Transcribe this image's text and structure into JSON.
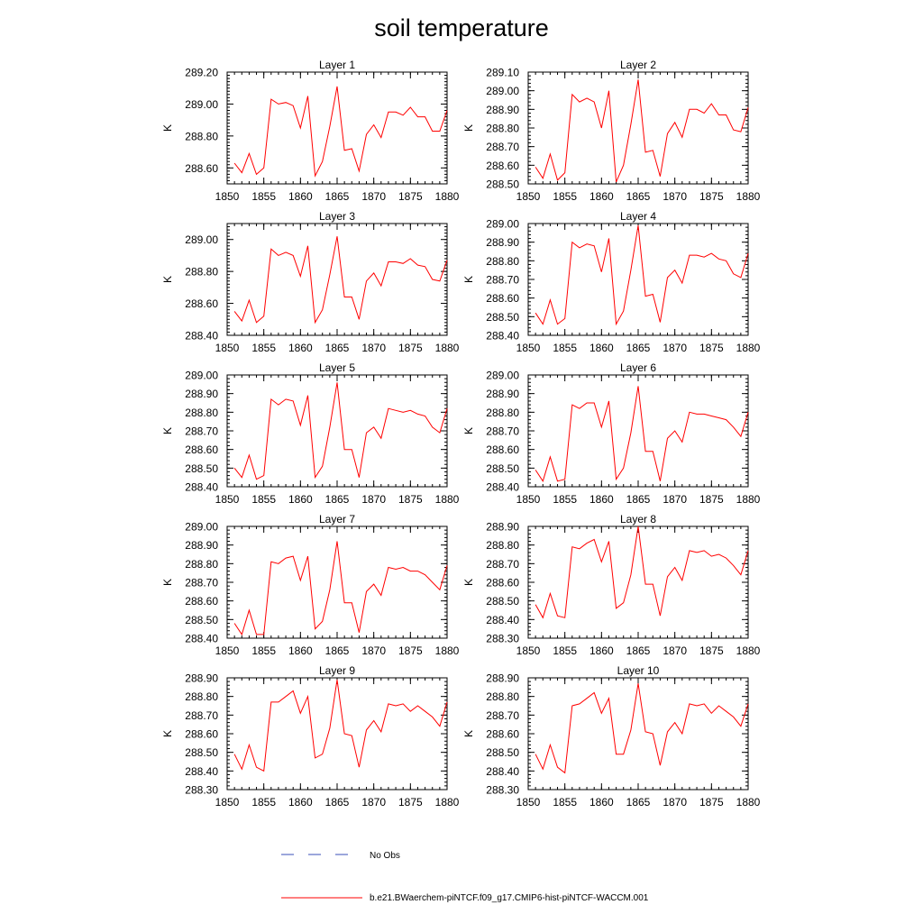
{
  "title": "soil temperature",
  "colors": {
    "model": "#ff0000",
    "obs": "#3a4fb8",
    "axis": "#000000"
  },
  "legend": {
    "obs_label": "No Obs",
    "model_label": "b.e21.BWaerchem-piNTCF.f09_g17.CMIP6-hist-piNTCF-WACCM.001"
  },
  "chart_data": [
    {
      "type": "line",
      "title": "Layer 1",
      "ylabel": "K",
      "xlim": [
        1850,
        1880
      ],
      "ylim": [
        288.5,
        289.2
      ],
      "yticks": [
        288.6,
        288.8,
        289.0,
        289.2
      ],
      "xticks": [
        1850,
        1855,
        1860,
        1865,
        1870,
        1875,
        1880
      ],
      "x": [
        1851,
        1852,
        1853,
        1854,
        1855,
        1856,
        1857,
        1858,
        1859,
        1860,
        1861,
        1862,
        1863,
        1864,
        1865,
        1866,
        1867,
        1868,
        1869,
        1870,
        1871,
        1872,
        1873,
        1874,
        1875,
        1876,
        1877,
        1878,
        1879,
        1880
      ],
      "series": [
        {
          "name": "b.e21.BWaerchem-piNTCF.f09_g17.CMIP6-hist-piNTCF-WACCM.001",
          "values": [
            288.63,
            288.57,
            288.69,
            288.56,
            288.6,
            289.03,
            289.0,
            289.01,
            288.99,
            288.85,
            289.05,
            288.55,
            288.64,
            288.86,
            289.11,
            288.71,
            288.72,
            288.58,
            288.81,
            288.87,
            288.79,
            288.95,
            288.95,
            288.93,
            288.98,
            288.92,
            288.92,
            288.83,
            288.83,
            288.96
          ]
        }
      ]
    },
    {
      "type": "line",
      "title": "Layer 2",
      "ylabel": "K",
      "xlim": [
        1850,
        1880
      ],
      "ylim": [
        288.5,
        289.1
      ],
      "yticks": [
        288.5,
        288.6,
        288.7,
        288.8,
        288.9,
        289.0,
        289.1
      ],
      "xticks": [
        1850,
        1855,
        1860,
        1865,
        1870,
        1875,
        1880
      ],
      "x": [
        1851,
        1852,
        1853,
        1854,
        1855,
        1856,
        1857,
        1858,
        1859,
        1860,
        1861,
        1862,
        1863,
        1864,
        1865,
        1866,
        1867,
        1868,
        1869,
        1870,
        1871,
        1872,
        1873,
        1874,
        1875,
        1876,
        1877,
        1878,
        1879,
        1880
      ],
      "series": [
        {
          "name": "b.e21.BWaerchem-piNTCF.f09_g17.CMIP6-hist-piNTCF-WACCM.001",
          "values": [
            288.59,
            288.53,
            288.66,
            288.52,
            288.56,
            288.98,
            288.94,
            288.96,
            288.94,
            288.8,
            289.0,
            288.51,
            288.6,
            288.82,
            289.06,
            288.67,
            288.68,
            288.54,
            288.77,
            288.83,
            288.75,
            288.9,
            288.9,
            288.88,
            288.93,
            288.87,
            288.87,
            288.79,
            288.78,
            288.91
          ]
        }
      ]
    },
    {
      "type": "line",
      "title": "Layer 3",
      "ylabel": "K",
      "xlim": [
        1850,
        1880
      ],
      "ylim": [
        288.4,
        289.1
      ],
      "yticks": [
        288.4,
        288.6,
        288.8,
        289.0
      ],
      "xticks": [
        1850,
        1855,
        1860,
        1865,
        1870,
        1875,
        1880
      ],
      "x": [
        1851,
        1852,
        1853,
        1854,
        1855,
        1856,
        1857,
        1858,
        1859,
        1860,
        1861,
        1862,
        1863,
        1864,
        1865,
        1866,
        1867,
        1868,
        1869,
        1870,
        1871,
        1872,
        1873,
        1874,
        1875,
        1876,
        1877,
        1878,
        1879,
        1880
      ],
      "series": [
        {
          "name": "b.e21.BWaerchem-piNTCF.f09_g17.CMIP6-hist-piNTCF-WACCM.001",
          "values": [
            288.55,
            288.49,
            288.62,
            288.48,
            288.52,
            288.94,
            288.9,
            288.92,
            288.9,
            288.77,
            288.96,
            288.48,
            288.56,
            288.78,
            289.02,
            288.64,
            288.64,
            288.5,
            288.74,
            288.79,
            288.71,
            288.86,
            288.86,
            288.85,
            288.88,
            288.84,
            288.83,
            288.75,
            288.74,
            288.87
          ]
        }
      ]
    },
    {
      "type": "line",
      "title": "Layer 4",
      "ylabel": "K",
      "xlim": [
        1850,
        1880
      ],
      "ylim": [
        288.4,
        289.0
      ],
      "yticks": [
        288.4,
        288.5,
        288.6,
        288.7,
        288.8,
        288.9,
        289.0
      ],
      "xticks": [
        1850,
        1855,
        1860,
        1865,
        1870,
        1875,
        1880
      ],
      "x": [
        1851,
        1852,
        1853,
        1854,
        1855,
        1856,
        1857,
        1858,
        1859,
        1860,
        1861,
        1862,
        1863,
        1864,
        1865,
        1866,
        1867,
        1868,
        1869,
        1870,
        1871,
        1872,
        1873,
        1874,
        1875,
        1876,
        1877,
        1878,
        1879,
        1880
      ],
      "series": [
        {
          "name": "b.e21.BWaerchem-piNTCF.f09_g17.CMIP6-hist-piNTCF-WACCM.001",
          "values": [
            288.52,
            288.46,
            288.59,
            288.46,
            288.49,
            288.9,
            288.87,
            288.89,
            288.88,
            288.74,
            288.92,
            288.46,
            288.53,
            288.75,
            288.99,
            288.61,
            288.62,
            288.47,
            288.71,
            288.75,
            288.68,
            288.83,
            288.83,
            288.82,
            288.84,
            288.81,
            288.8,
            288.73,
            288.71,
            288.84
          ]
        }
      ]
    },
    {
      "type": "line",
      "title": "Layer 5",
      "ylabel": "K",
      "xlim": [
        1850,
        1880
      ],
      "ylim": [
        288.4,
        289.0
      ],
      "yticks": [
        288.4,
        288.5,
        288.6,
        288.7,
        288.8,
        288.9,
        289.0
      ],
      "xticks": [
        1850,
        1855,
        1860,
        1865,
        1870,
        1875,
        1880
      ],
      "x": [
        1851,
        1852,
        1853,
        1854,
        1855,
        1856,
        1857,
        1858,
        1859,
        1860,
        1861,
        1862,
        1863,
        1864,
        1865,
        1866,
        1867,
        1868,
        1869,
        1870,
        1871,
        1872,
        1873,
        1874,
        1875,
        1876,
        1877,
        1878,
        1879,
        1880
      ],
      "series": [
        {
          "name": "b.e21.BWaerchem-piNTCF.f09_g17.CMIP6-hist-piNTCF-WACCM.001",
          "values": [
            288.5,
            288.45,
            288.57,
            288.44,
            288.46,
            288.87,
            288.84,
            288.87,
            288.86,
            288.73,
            288.89,
            288.45,
            288.51,
            288.72,
            288.96,
            288.6,
            288.6,
            288.45,
            288.69,
            288.72,
            288.66,
            288.82,
            288.81,
            288.8,
            288.81,
            288.79,
            288.78,
            288.72,
            288.69,
            288.82
          ]
        }
      ]
    },
    {
      "type": "line",
      "title": "Layer 6",
      "ylabel": "K",
      "xlim": [
        1850,
        1880
      ],
      "ylim": [
        288.4,
        289.0
      ],
      "yticks": [
        288.4,
        288.5,
        288.6,
        288.7,
        288.8,
        288.9,
        289.0
      ],
      "xticks": [
        1850,
        1855,
        1860,
        1865,
        1870,
        1875,
        1880
      ],
      "x": [
        1851,
        1852,
        1853,
        1854,
        1855,
        1856,
        1857,
        1858,
        1859,
        1860,
        1861,
        1862,
        1863,
        1864,
        1865,
        1866,
        1867,
        1868,
        1869,
        1870,
        1871,
        1872,
        1873,
        1874,
        1875,
        1876,
        1877,
        1878,
        1879,
        1880
      ],
      "series": [
        {
          "name": "b.e21.BWaerchem-piNTCF.f09_g17.CMIP6-hist-piNTCF-WACCM.001",
          "values": [
            288.49,
            288.43,
            288.56,
            288.43,
            288.44,
            288.84,
            288.82,
            288.85,
            288.85,
            288.72,
            288.86,
            288.44,
            288.5,
            288.69,
            288.94,
            288.59,
            288.59,
            288.43,
            288.66,
            288.7,
            288.64,
            288.8,
            288.79,
            288.79,
            288.78,
            288.77,
            288.76,
            288.72,
            288.67,
            288.8
          ]
        }
      ]
    },
    {
      "type": "line",
      "title": "Layer 7",
      "ylabel": "K",
      "xlim": [
        1850,
        1880
      ],
      "ylim": [
        288.4,
        289.0
      ],
      "yticks": [
        288.4,
        288.5,
        288.6,
        288.7,
        288.8,
        288.9,
        289.0
      ],
      "xticks": [
        1850,
        1855,
        1860,
        1865,
        1870,
        1875,
        1880
      ],
      "x": [
        1851,
        1852,
        1853,
        1854,
        1855,
        1856,
        1857,
        1858,
        1859,
        1860,
        1861,
        1862,
        1863,
        1864,
        1865,
        1866,
        1867,
        1868,
        1869,
        1870,
        1871,
        1872,
        1873,
        1874,
        1875,
        1876,
        1877,
        1878,
        1879,
        1880
      ],
      "series": [
        {
          "name": "b.e21.BWaerchem-piNTCF.f09_g17.CMIP6-hist-piNTCF-WACCM.001",
          "values": [
            288.48,
            288.42,
            288.55,
            288.42,
            288.42,
            288.81,
            288.8,
            288.83,
            288.84,
            288.71,
            288.84,
            288.45,
            288.49,
            288.66,
            288.92,
            288.59,
            288.59,
            288.43,
            288.65,
            288.69,
            288.63,
            288.78,
            288.77,
            288.78,
            288.76,
            288.76,
            288.74,
            288.7,
            288.66,
            288.79
          ]
        }
      ]
    },
    {
      "type": "line",
      "title": "Layer 8",
      "ylabel": "K",
      "xlim": [
        1850,
        1880
      ],
      "ylim": [
        288.3,
        288.9
      ],
      "yticks": [
        288.3,
        288.4,
        288.5,
        288.6,
        288.7,
        288.8,
        288.9
      ],
      "xticks": [
        1850,
        1855,
        1860,
        1865,
        1870,
        1875,
        1880
      ],
      "x": [
        1851,
        1852,
        1853,
        1854,
        1855,
        1856,
        1857,
        1858,
        1859,
        1860,
        1861,
        1862,
        1863,
        1864,
        1865,
        1866,
        1867,
        1868,
        1869,
        1870,
        1871,
        1872,
        1873,
        1874,
        1875,
        1876,
        1877,
        1878,
        1879,
        1880
      ],
      "series": [
        {
          "name": "b.e21.BWaerchem-piNTCF.f09_g17.CMIP6-hist-piNTCF-WACCM.001",
          "values": [
            288.48,
            288.41,
            288.54,
            288.42,
            288.41,
            288.79,
            288.78,
            288.81,
            288.83,
            288.71,
            288.82,
            288.46,
            288.49,
            288.64,
            288.9,
            288.59,
            288.59,
            288.42,
            288.63,
            288.68,
            288.61,
            288.77,
            288.76,
            288.77,
            288.74,
            288.75,
            288.73,
            288.69,
            288.64,
            288.77
          ]
        }
      ]
    },
    {
      "type": "line",
      "title": "Layer 9",
      "ylabel": "K",
      "xlim": [
        1850,
        1880
      ],
      "ylim": [
        288.3,
        288.9
      ],
      "yticks": [
        288.3,
        288.4,
        288.5,
        288.6,
        288.7,
        288.8,
        288.9
      ],
      "xticks": [
        1850,
        1855,
        1860,
        1865,
        1870,
        1875,
        1880
      ],
      "x": [
        1851,
        1852,
        1853,
        1854,
        1855,
        1856,
        1857,
        1858,
        1859,
        1860,
        1861,
        1862,
        1863,
        1864,
        1865,
        1866,
        1867,
        1868,
        1869,
        1870,
        1871,
        1872,
        1873,
        1874,
        1875,
        1876,
        1877,
        1878,
        1879,
        1880
      ],
      "series": [
        {
          "name": "b.e21.BWaerchem-piNTCF.f09_g17.CMIP6-hist-piNTCF-WACCM.001",
          "values": [
            288.49,
            288.41,
            288.54,
            288.42,
            288.4,
            288.77,
            288.77,
            288.8,
            288.83,
            288.71,
            288.8,
            288.47,
            288.49,
            288.63,
            288.89,
            288.6,
            288.59,
            288.42,
            288.62,
            288.67,
            288.61,
            288.76,
            288.75,
            288.76,
            288.72,
            288.75,
            288.72,
            288.69,
            288.64,
            288.77
          ]
        }
      ]
    },
    {
      "type": "line",
      "title": "Layer 10",
      "ylabel": "K",
      "xlim": [
        1850,
        1880
      ],
      "ylim": [
        288.3,
        288.9
      ],
      "yticks": [
        288.3,
        288.4,
        288.5,
        288.6,
        288.7,
        288.8,
        288.9
      ],
      "xticks": [
        1850,
        1855,
        1860,
        1865,
        1870,
        1875,
        1880
      ],
      "x": [
        1851,
        1852,
        1853,
        1854,
        1855,
        1856,
        1857,
        1858,
        1859,
        1860,
        1861,
        1862,
        1863,
        1864,
        1865,
        1866,
        1867,
        1868,
        1869,
        1870,
        1871,
        1872,
        1873,
        1874,
        1875,
        1876,
        1877,
        1878,
        1879,
        1880
      ],
      "series": [
        {
          "name": "b.e21.BWaerchem-piNTCF.f09_g17.CMIP6-hist-piNTCF-WACCM.001",
          "values": [
            288.49,
            288.41,
            288.54,
            288.42,
            288.39,
            288.75,
            288.76,
            288.79,
            288.82,
            288.71,
            288.79,
            288.49,
            288.49,
            288.62,
            288.87,
            288.61,
            288.6,
            288.43,
            288.61,
            288.66,
            288.6,
            288.76,
            288.75,
            288.76,
            288.71,
            288.75,
            288.72,
            288.69,
            288.64,
            288.76
          ]
        }
      ]
    }
  ]
}
